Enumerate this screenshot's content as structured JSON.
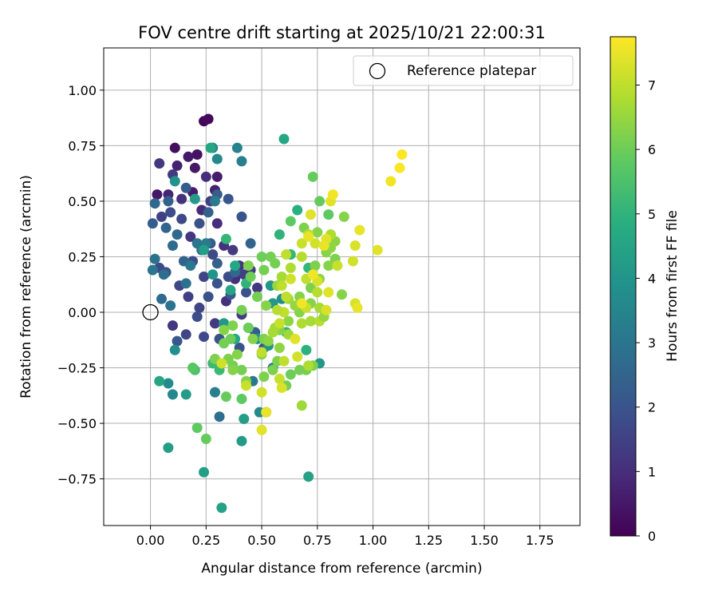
{
  "chart_data": {
    "type": "scatter",
    "title": "FOV centre drift starting at 2025/10/21 22:00:31",
    "xlabel": "Angular distance from reference (arcmin)",
    "ylabel": "Rotation from reference (arcmin)",
    "xlim": [
      -0.21,
      1.93
    ],
    "ylim": [
      -0.96,
      1.19
    ],
    "xticks": [
      "0.00",
      "0.25",
      "0.50",
      "0.75",
      "1.00",
      "1.25",
      "1.50",
      "1.75"
    ],
    "xtick_values": [
      0,
      0.25,
      0.5,
      0.75,
      1.0,
      1.25,
      1.5,
      1.75
    ],
    "yticks": [
      "1.00",
      "0.75",
      "0.50",
      "0.25",
      "0.00",
      "−0.25",
      "−0.50",
      "−0.75"
    ],
    "ytick_values": [
      1.0,
      0.75,
      0.5,
      0.25,
      0.0,
      -0.25,
      -0.5,
      -0.75
    ],
    "grid": true,
    "legend": {
      "placement": "top-right",
      "label": "Reference platepar",
      "marker": "open-circle"
    },
    "reference_point": {
      "x": 0.0,
      "y": 0.0
    },
    "colorbar": {
      "label": "Hours from first FF file",
      "colormap": "viridis",
      "range": [
        0,
        7.75
      ],
      "ticks": [
        "0",
        "1",
        "2",
        "3",
        "4",
        "5",
        "6",
        "7"
      ],
      "tick_values": [
        0,
        1,
        2,
        3,
        4,
        5,
        6,
        7
      ]
    },
    "columns": [
      "x",
      "y",
      "hours"
    ],
    "points": [
      [
        0.24,
        0.86,
        0.1
      ],
      [
        0.26,
        0.87,
        0.2
      ],
      [
        0.11,
        0.74,
        0.3
      ],
      [
        0.21,
        0.71,
        0.4
      ],
      [
        0.2,
        0.65,
        0.5
      ],
      [
        0.17,
        0.7,
        0.5
      ],
      [
        0.3,
        0.61,
        0.6
      ],
      [
        0.12,
        0.66,
        0.7
      ],
      [
        0.29,
        0.55,
        0.7
      ],
      [
        0.03,
        0.53,
        0.5
      ],
      [
        0.08,
        0.53,
        0.8
      ],
      [
        0.19,
        0.54,
        0.6
      ],
      [
        0.25,
        0.61,
        1.0
      ],
      [
        0.04,
        0.67,
        1.2
      ],
      [
        0.1,
        0.62,
        1.3
      ],
      [
        0.14,
        0.51,
        1.1
      ],
      [
        0.23,
        0.46,
        0.9
      ],
      [
        0.3,
        0.4,
        1.0
      ],
      [
        0.27,
        0.5,
        1.4
      ],
      [
        0.18,
        0.34,
        1.2
      ],
      [
        0.33,
        0.3,
        1.1
      ],
      [
        0.37,
        0.28,
        1.3
      ],
      [
        0.4,
        0.21,
        1.2
      ],
      [
        0.42,
        0.17,
        1.5
      ],
      [
        0.38,
        0.15,
        1.0
      ],
      [
        0.45,
        0.19,
        1.4
      ],
      [
        0.48,
        0.11,
        1.2
      ],
      [
        0.34,
        0.05,
        1.1
      ],
      [
        0.41,
        -0.01,
        1.4
      ],
      [
        0.29,
        -0.05,
        1.3
      ],
      [
        0.22,
        0.02,
        1.6
      ],
      [
        0.17,
        0.07,
        1.5
      ],
      [
        0.1,
        -0.06,
        1.2
      ],
      [
        0.13,
        0.12,
        1.6
      ],
      [
        0.07,
        0.18,
        1.9
      ],
      [
        0.04,
        0.2,
        1.7
      ],
      [
        0.05,
        0.43,
        1.5
      ],
      [
        0.09,
        0.45,
        1.8
      ],
      [
        0.14,
        0.42,
        1.7
      ],
      [
        0.22,
        0.4,
        1.9
      ],
      [
        0.28,
        0.26,
        1.7
      ],
      [
        0.24,
        0.16,
        1.6
      ],
      [
        0.19,
        0.23,
        1.8
      ],
      [
        0.3,
        0.13,
        2.0
      ],
      [
        0.35,
        0.16,
        1.8
      ],
      [
        0.26,
        0.07,
        1.9
      ],
      [
        0.21,
        -0.02,
        1.8
      ],
      [
        0.16,
        -0.1,
        1.6
      ],
      [
        0.12,
        -0.13,
        2.1
      ],
      [
        0.24,
        -0.11,
        1.7
      ],
      [
        0.31,
        -0.12,
        1.9
      ],
      [
        0.36,
        0.08,
        2.2
      ],
      [
        0.43,
        0.09,
        1.9
      ],
      [
        0.47,
        -0.09,
        2.3
      ],
      [
        0.51,
        -0.16,
        1.8
      ],
      [
        0.4,
        -0.16,
        2.0
      ],
      [
        0.52,
        -0.45,
        2.2
      ],
      [
        0.41,
        0.43,
        2.0
      ],
      [
        0.35,
        0.51,
        2.1
      ],
      [
        0.3,
        0.53,
        2.3
      ],
      [
        0.26,
        0.45,
        2.4
      ],
      [
        0.16,
        0.56,
        2.2
      ],
      [
        0.08,
        0.5,
        2.4
      ],
      [
        0.02,
        0.49,
        2.6
      ],
      [
        0.01,
        0.4,
        2.3
      ],
      [
        0.07,
        0.38,
        2.5
      ],
      [
        0.12,
        0.35,
        2.6
      ],
      [
        0.27,
        0.31,
        2.2
      ],
      [
        0.45,
        0.31,
        2.5
      ],
      [
        0.38,
        0.18,
        2.6
      ],
      [
        0.3,
        0.22,
        2.4
      ],
      [
        0.23,
        0.28,
        2.8
      ],
      [
        0.15,
        0.23,
        2.5
      ],
      [
        0.1,
        0.3,
        2.7
      ],
      [
        0.06,
        0.17,
        2.8
      ],
      [
        0.02,
        0.24,
        2.9
      ],
      [
        0.01,
        0.19,
        3.0
      ],
      [
        0.05,
        0.06,
        2.7
      ],
      [
        0.09,
        0.03,
        2.9
      ],
      [
        0.16,
        0.13,
        2.9
      ],
      [
        0.21,
        0.31,
        3.0
      ],
      [
        0.18,
        0.21,
        3.1
      ],
      [
        0.25,
        0.31,
        3.2
      ],
      [
        0.39,
        0.74,
        3.4
      ],
      [
        0.41,
        0.68,
        3.3
      ],
      [
        0.28,
        0.74,
        3.5
      ],
      [
        0.3,
        0.69,
        3.6
      ],
      [
        0.29,
        0.5,
        3.2
      ],
      [
        0.29,
        -0.36,
        3.3
      ],
      [
        0.31,
        -0.47,
        2.8
      ],
      [
        0.46,
        -0.31,
        3.1
      ],
      [
        0.55,
        -0.25,
        3.2
      ],
      [
        0.49,
        -0.45,
        3.7
      ],
      [
        0.08,
        -0.32,
        3.7
      ],
      [
        0.1,
        -0.37,
        3.6
      ],
      [
        0.11,
        -0.17,
        3.8
      ],
      [
        0.08,
        -0.61,
        4.3
      ],
      [
        0.16,
        -0.37,
        4.2
      ],
      [
        0.04,
        -0.31,
        4.5
      ],
      [
        0.11,
        0.59,
        3.9
      ],
      [
        0.2,
        0.51,
        4.2
      ],
      [
        0.24,
        0.28,
        4.3
      ],
      [
        0.28,
        0.17,
        4.0
      ],
      [
        0.36,
        0.1,
        4.5
      ],
      [
        0.33,
        -0.05,
        4.1
      ],
      [
        0.38,
        -0.12,
        4.6
      ],
      [
        0.42,
        -0.48,
        4.3
      ],
      [
        0.41,
        -0.58,
        4.2
      ],
      [
        0.24,
        -0.72,
        4.3
      ],
      [
        0.32,
        -0.88,
        4.4
      ],
      [
        0.71,
        -0.74,
        4.4
      ],
      [
        0.76,
        -0.23,
        4.1
      ],
      [
        0.6,
        0.78,
        4.6
      ],
      [
        0.54,
        0.12,
        4.1
      ],
      [
        0.59,
        0.06,
        3.8
      ],
      [
        0.55,
        0.04,
        4.1
      ],
      [
        0.53,
        -0.15,
        3.9
      ],
      [
        0.48,
        -0.12,
        4.0
      ],
      [
        0.44,
        -0.07,
        4.3
      ],
      [
        0.27,
        0.74,
        4.6
      ],
      [
        0.38,
        0.21,
        4.6
      ],
      [
        0.66,
        0.46,
        4.9
      ],
      [
        0.58,
        0.35,
        5.0
      ],
      [
        0.61,
        -0.09,
        4.9
      ],
      [
        0.7,
        -0.17,
        4.9
      ],
      [
        0.63,
        0.26,
        5.1
      ],
      [
        0.71,
        0.2,
        5.1
      ],
      [
        0.43,
        0.13,
        5.0
      ],
      [
        0.34,
        0.33,
        5.1
      ],
      [
        0.31,
        -0.26,
        5.2
      ],
      [
        0.28,
        -0.23,
        5.2
      ],
      [
        0.2,
        -0.26,
        5.5
      ],
      [
        0.19,
        -0.25,
        5.7
      ],
      [
        0.21,
        -0.52,
        5.8
      ],
      [
        0.25,
        -0.57,
        5.9
      ],
      [
        0.34,
        -0.38,
        5.9
      ],
      [
        0.41,
        -0.39,
        5.8
      ],
      [
        0.73,
        0.61,
        5.9
      ],
      [
        0.76,
        0.5,
        5.9
      ],
      [
        0.8,
        0.44,
        5.8
      ],
      [
        0.63,
        0.41,
        5.8
      ],
      [
        0.69,
        0.38,
        6.2
      ],
      [
        0.75,
        0.36,
        6.3
      ],
      [
        0.54,
        0.25,
        6.1
      ],
      [
        0.5,
        0.25,
        6.0
      ],
      [
        0.56,
        0.22,
        6.1
      ],
      [
        0.51,
        0.19,
        6.1
      ],
      [
        0.44,
        0.21,
        6.2
      ],
      [
        0.45,
        0.16,
        6.0
      ],
      [
        0.48,
        0.07,
        6.1
      ],
      [
        0.52,
        0.03,
        6.3
      ],
      [
        0.41,
        0.01,
        6.1
      ],
      [
        0.44,
        -0.07,
        6.0
      ],
      [
        0.37,
        -0.06,
        6.2
      ],
      [
        0.33,
        -0.08,
        6.3
      ],
      [
        0.36,
        -0.12,
        6.0
      ],
      [
        0.33,
        -0.14,
        6.1
      ],
      [
        0.29,
        -0.21,
        6.2
      ],
      [
        0.35,
        -0.21,
        6.2
      ],
      [
        0.37,
        -0.24,
        6.1
      ],
      [
        0.39,
        -0.19,
        6.3
      ],
      [
        0.41,
        -0.26,
        6.1
      ],
      [
        0.43,
        -0.31,
        6.3
      ],
      [
        0.37,
        -0.26,
        6.3
      ],
      [
        0.46,
        -0.12,
        6.3
      ],
      [
        0.51,
        -0.12,
        6.2
      ],
      [
        0.5,
        -0.19,
        6.3
      ],
      [
        0.51,
        -0.29,
        6.2
      ],
      [
        0.55,
        -0.26,
        6.2
      ],
      [
        0.57,
        -0.22,
        6.2
      ],
      [
        0.63,
        -0.28,
        6.0
      ],
      [
        0.61,
        -0.33,
        6.1
      ],
      [
        0.67,
        -0.26,
        6.1
      ],
      [
        0.7,
        -0.26,
        6.1
      ],
      [
        0.73,
        -0.24,
        6.2
      ],
      [
        0.68,
        -0.42,
        6.6
      ],
      [
        0.58,
        -0.16,
        6.4
      ],
      [
        0.53,
        -0.13,
        6.4
      ],
      [
        0.58,
        -0.08,
        6.3
      ],
      [
        0.62,
        -0.04,
        6.4
      ],
      [
        0.67,
        0.0,
        6.3
      ],
      [
        0.72,
        0.04,
        6.3
      ],
      [
        0.67,
        0.07,
        6.3
      ],
      [
        0.72,
        0.11,
        6.2
      ],
      [
        0.74,
        0.21,
        6.2
      ],
      [
        0.79,
        0.27,
        6.3
      ],
      [
        0.81,
        0.29,
        6.4
      ],
      [
        0.8,
        0.21,
        6.3
      ],
      [
        0.76,
        0.15,
        6.4
      ],
      [
        0.83,
        0.24,
        6.2
      ],
      [
        0.86,
        0.08,
        6.3
      ],
      [
        0.87,
        0.43,
        6.3
      ],
      [
        0.83,
        0.32,
        6.4
      ],
      [
        0.81,
        0.35,
        6.8
      ],
      [
        0.71,
        0.35,
        6.9
      ],
      [
        0.68,
        0.31,
        7.1
      ],
      [
        0.61,
        0.26,
        7.0
      ],
      [
        0.63,
        0.2,
        6.8
      ],
      [
        0.59,
        0.16,
        6.7
      ],
      [
        0.57,
        0.12,
        6.5
      ],
      [
        0.62,
        0.06,
        6.6
      ],
      [
        0.65,
        0.03,
        6.5
      ],
      [
        0.6,
        0.0,
        7.0
      ],
      [
        0.57,
        0.01,
        6.9
      ],
      [
        0.56,
        -0.07,
        6.6
      ],
      [
        0.55,
        -0.09,
        6.7
      ],
      [
        0.62,
        -0.1,
        6.6
      ],
      [
        0.68,
        -0.05,
        6.8
      ],
      [
        0.72,
        -0.04,
        6.7
      ],
      [
        0.76,
        -0.04,
        6.9
      ],
      [
        0.78,
        -0.02,
        6.5
      ],
      [
        0.76,
        0.02,
        6.7
      ],
      [
        0.7,
        0.02,
        7.1
      ],
      [
        0.75,
        0.09,
        6.9
      ],
      [
        0.7,
        0.15,
        7.0
      ],
      [
        0.68,
        0.25,
        6.9
      ],
      [
        0.63,
        0.15,
        7.2
      ],
      [
        0.59,
        0.12,
        7.0
      ],
      [
        0.61,
        0.07,
        7.0
      ],
      [
        0.58,
        -0.05,
        7.1
      ],
      [
        0.65,
        -0.12,
        7.4
      ],
      [
        0.66,
        -0.2,
        7.2
      ],
      [
        0.71,
        -0.24,
        6.8
      ],
      [
        0.6,
        -0.22,
        7.0
      ],
      [
        0.58,
        -0.3,
        7.1
      ],
      [
        0.5,
        -0.18,
        7.0
      ],
      [
        0.5,
        -0.36,
        7.2
      ],
      [
        0.43,
        -0.33,
        7.1
      ],
      [
        0.32,
        -0.23,
        7.2
      ],
      [
        0.59,
        -0.34,
        7.3
      ],
      [
        0.52,
        -0.45,
        7.5
      ],
      [
        0.5,
        -0.53,
        7.4
      ],
      [
        0.75,
        0.14,
        7.3
      ],
      [
        0.8,
        0.09,
        7.4
      ],
      [
        0.79,
        0.01,
        7.3
      ],
      [
        0.84,
        0.21,
        7.1
      ],
      [
        0.79,
        0.33,
        7.4
      ],
      [
        0.74,
        0.31,
        7.2
      ],
      [
        0.71,
        0.34,
        7.5
      ],
      [
        0.72,
        0.44,
        7.4
      ],
      [
        0.81,
        0.5,
        7.4
      ],
      [
        0.82,
        0.53,
        7.6
      ],
      [
        0.91,
        0.23,
        7.2
      ],
      [
        0.92,
        0.3,
        7.3
      ],
      [
        0.94,
        0.37,
        7.5
      ],
      [
        0.92,
        0.04,
        7.3
      ],
      [
        0.93,
        0.02,
        7.5
      ],
      [
        1.02,
        0.28,
        7.4
      ],
      [
        1.08,
        0.59,
        7.6
      ],
      [
        1.12,
        0.65,
        7.7
      ],
      [
        1.13,
        0.71,
        7.8
      ],
      [
        0.78,
        0.3,
        7.5
      ],
      [
        0.68,
        0.04,
        7.6
      ],
      [
        0.73,
        0.17,
        7.6
      ]
    ]
  }
}
